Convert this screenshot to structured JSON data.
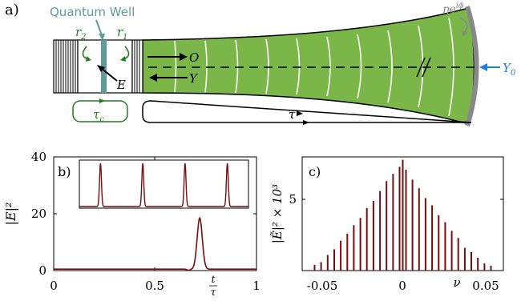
{
  "panel_a": {
    "label": "a)",
    "qw_label": "Quantum Well",
    "r2_label": "r",
    "r2_sub": "2",
    "r1_label": "r",
    "r1_sub": "1",
    "E_label": "E",
    "O_label": "O",
    "Y_label": "Y",
    "Y0_label": "Y",
    "Y0_sub": "0",
    "mirror_label": "ηe",
    "mirror_sup": "iϕ",
    "tau_c_label": "τ",
    "tau_c_sub": "c",
    "tau_label": "τ",
    "colors": {
      "cavity": "#7ab648",
      "qw": "#5f9c98",
      "green": "#1f7f1f",
      "blue": "#1f7fe0",
      "mirror": "#888888"
    }
  },
  "chart_data": [
    {
      "type": "line",
      "panel_label": "b)",
      "ylabel": "|E|²",
      "xlabel": "t/τ",
      "xlim": [
        0,
        1
      ],
      "ylim": [
        0,
        40
      ],
      "xticks": [
        "0",
        "0.5",
        "1"
      ],
      "yticks": [
        "0",
        "20",
        "40"
      ],
      "series": [
        {
          "color": "#7a0c0c",
          "peak_x": 0.72,
          "peak_y": 18,
          "baseline": 0.5
        }
      ],
      "inset": {
        "peaks": 4,
        "color": "#7a0c0c"
      }
    },
    {
      "type": "bar",
      "panel_label": "c)",
      "ylabel": "|Ẽ|² × 10³",
      "xlabel": "ν",
      "xlim": [
        -0.06,
        0.06
      ],
      "ylim": [
        0,
        8
      ],
      "xticks": [
        "-0.05",
        "0",
        "0.05"
      ],
      "yticks": [
        "5"
      ],
      "x": [
        -0.0526,
        -0.0487,
        -0.0448,
        -0.0409,
        -0.037,
        -0.0331,
        -0.0292,
        -0.0253,
        -0.0214,
        -0.0175,
        -0.0136,
        -0.0097,
        -0.0058,
        -0.0019,
        0.0,
        0.0019,
        0.0058,
        0.0097,
        0.0136,
        0.0175,
        0.0214,
        0.0253,
        0.0292,
        0.0331,
        0.037,
        0.0409,
        0.0448,
        0.0487,
        0.0526
      ],
      "values": [
        0.4,
        0.6,
        1.1,
        1.5,
        2.1,
        2.6,
        3.2,
        3.7,
        4.4,
        4.9,
        5.6,
        6.3,
        6.8,
        7.3,
        7.8,
        7.1,
        6.4,
        5.8,
        5.1,
        4.6,
        3.9,
        3.4,
        2.8,
        2.3,
        1.6,
        1.3,
        0.9,
        0.5,
        0.35
      ],
      "color": "#7a0c0c"
    }
  ]
}
